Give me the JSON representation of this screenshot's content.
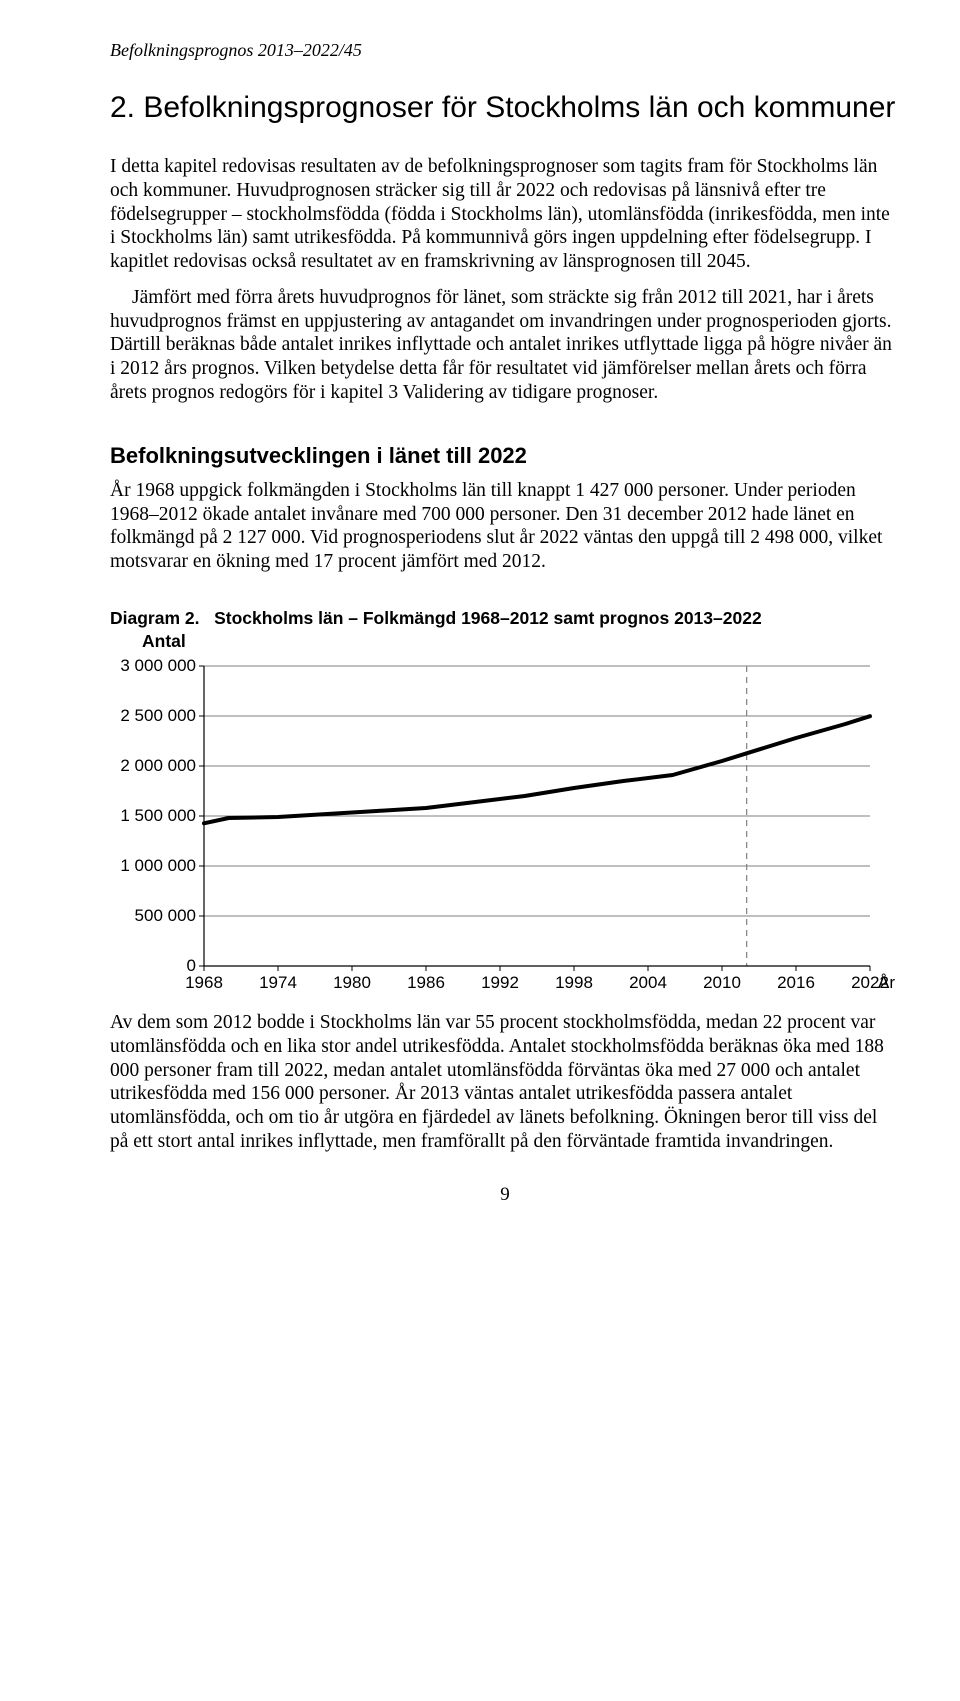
{
  "running_header": "Befolkningsprognos 2013–2022/45",
  "chapter_title": "2. Befolkningsprognoser för Stockholms län och kommuner",
  "para1": "I detta kapitel redovisas resultaten av de befolkningsprognoser som tagits fram för Stockholms län och kommuner. Huvudprognosen sträcker sig till år 2022 och redovisas på länsnivå efter tre födelsegrupper – stockholmsfödda (födda i Stockholms län), utomlänsfödda (inrikesfödda, men inte i Stockholms län) samt utrikesfödda. På kommunnivå görs ingen uppdelning efter födelsegrupp. I kapitlet redovisas också resultatet av en framskrivning av länsprognosen till 2045.",
  "para2": "Jämfört med förra årets huvudprognos för länet, som sträckte sig från 2012 till 2021, har i årets huvudprognos främst en uppjustering av antagandet om invandringen under prognosperioden gjorts. Därtill beräknas både antalet inrikes inflyttade och antalet inrikes utflyttade ligga på högre nivåer än i 2012 års prognos. Vilken betydelse detta får för resultatet vid jämförelser mellan årets och förra årets prognos redogörs för i kapitel 3 Validering av tidigare prognoser.",
  "subheading": "Befolkningsutvecklingen i länet till 2022",
  "para3": "År 1968 uppgick folkmängden i Stockholms län till knappt 1 427 000 personer. Under perioden 1968–2012 ökade antalet invånare med 700 000 personer. Den 31 december 2012 hade länet en folkmängd på 2 127 000. Vid prognosperiodens slut år 2022 väntas den uppgå till 2 498 000, vilket motsvarar en ökning med 17 procent jämfört med 2012.",
  "chart": {
    "caption_prefix": "Diagram 2.",
    "caption_text": "Stockholms län – Folkmängd 1968–2012 samt prognos 2013–2022",
    "y_axis_title": "Antal",
    "x_axis_title": "År",
    "type": "line",
    "background_color": "#ffffff",
    "grid_color": "#7f7f7f",
    "axis_color": "#000000",
    "line_color": "#000000",
    "line_width": 4,
    "forecast_divider_year": 2012,
    "forecast_divider_style": "dashed",
    "xlim": [
      1968,
      2022
    ],
    "ylim": [
      0,
      3000000
    ],
    "xtick_step": 6,
    "ytick_step": 500000,
    "xtick_labels": [
      "1968",
      "1974",
      "1980",
      "1986",
      "1992",
      "1998",
      "2004",
      "2010",
      "2016",
      "2022"
    ],
    "ytick_labels": [
      "0",
      "500 000",
      "1 000 000",
      "1 500 000",
      "2 000 000",
      "2 500 000",
      "3 000 000"
    ],
    "series": {
      "years": [
        1968,
        1970,
        1974,
        1978,
        1982,
        1986,
        1990,
        1994,
        1998,
        2002,
        2006,
        2010,
        2012,
        2016,
        2020,
        2022
      ],
      "values": [
        1427000,
        1480000,
        1490000,
        1520000,
        1550000,
        1580000,
        1640000,
        1700000,
        1780000,
        1850000,
        1910000,
        2050000,
        2127000,
        2280000,
        2420000,
        2498000
      ]
    },
    "label_fontsize": 17,
    "font_family": "Arial"
  },
  "para4": "Av dem som 2012 bodde i Stockholms län var 55 procent stockholmsfödda, medan 22 procent var utomlänsfödda och en lika stor andel utrikesfödda. Antalet stockholmsfödda beräknas öka med 188 000 personer fram till 2022, medan antalet utomlänsfödda förväntas öka med 27 000 och antalet utrikesfödda med 156 000 personer. År 2013 väntas antalet utrikesfödda passera antalet utomlänsfödda, och om tio år utgöra en fjärdedel av länets befolkning. Ökningen beror till viss del på ett stort antal inrikes inflyttade, men framförallt på den förväntade framtida invandringen.",
  "page_number": "9"
}
